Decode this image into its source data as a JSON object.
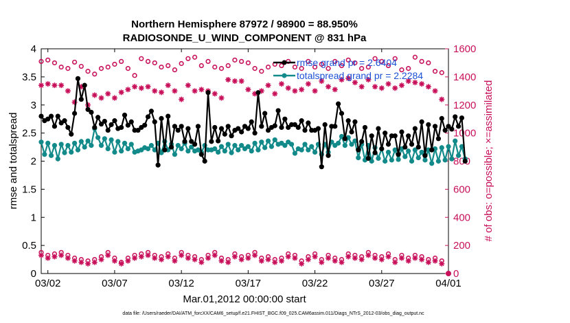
{
  "chart_data": {
    "type": "line",
    "title_line1": "Northern Hemisphere 87972 / 98900 = 88.950%",
    "title_line2": "RADIOSONDE_U_WIND_COMPONENT @ 831 hPa",
    "xlabel": "Mar.01,2012 00:00:00 start",
    "ylabel_left": "rmse and totalspread",
    "ylabel_right": "# of obs: o=possible; ×=assimilated",
    "x_range": [
      1.5,
      32.0
    ],
    "ylim_left": [
      0,
      4
    ],
    "ylim_right": [
      0,
      1600
    ],
    "x_ticks": [
      {
        "x": 2,
        "label": "03/02"
      },
      {
        "x": 7,
        "label": "03/07"
      },
      {
        "x": 12,
        "label": "03/12"
      },
      {
        "x": 17,
        "label": "03/17"
      },
      {
        "x": 22,
        "label": "03/22"
      },
      {
        "x": 27,
        "label": "03/27"
      },
      {
        "x": 32,
        "label": "04/01"
      }
    ],
    "y_ticks_left": [
      "0",
      "0.5",
      "1",
      "1.5",
      "2",
      "2.5",
      "3",
      "3.5",
      "4"
    ],
    "y_ticks_right": [
      "0",
      "200",
      "400",
      "600",
      "800",
      "1000",
      "1200",
      "1400",
      "1600"
    ],
    "legend": [
      "rmse grand pr = 2.6404",
      "totalspread grand pr = 2.2284"
    ],
    "footer": "data file: /Users/raeder/DAI/ATM_forcXX/CAM6_setup/f.e21.FHIST_BGC.f09_025.CAM6assim.011/Diags_NTrS_2012-03/obs_diag_output.nc",
    "colors": {
      "rmse": "#000000",
      "spread": "#138a8a",
      "obs": "#c8105a",
      "legend_text": "#1a4fd6"
    },
    "series": [
      {
        "name": "rmse",
        "x_start": 1.5,
        "x_step": 0.25,
        "values": [
          2.8,
          2.72,
          2.75,
          2.8,
          2.62,
          2.8,
          2.68,
          2.72,
          2.6,
          2.48,
          2.85,
          3.47,
          3.1,
          3.35,
          2.92,
          2.87,
          2.6,
          2.78,
          2.66,
          2.71,
          2.55,
          2.65,
          2.72,
          2.58,
          2.6,
          2.82,
          2.64,
          2.7,
          2.55,
          2.55,
          2.6,
          2.64,
          2.79,
          2.89,
          2.7,
          1.93,
          2.76,
          2.2,
          2.8,
          2.25,
          2.62,
          2.55,
          2.62,
          2.35,
          2.58,
          2.35,
          2.3,
          2.62,
          2.12,
          2.0,
          3.22,
          2.35,
          2.6,
          2.36,
          2.58,
          2.48,
          2.62,
          2.45,
          2.55,
          2.58,
          2.52,
          2.62,
          2.58,
          2.7,
          2.5,
          3.22,
          2.62,
          2.85,
          2.55,
          2.6,
          2.63,
          2.9,
          2.6,
          2.75,
          2.6,
          2.65,
          2.65,
          2.6,
          2.72,
          2.55,
          2.68,
          2.55,
          2.55,
          2.58,
          1.9,
          2.65,
          2.1,
          2.62,
          2.62,
          3.02,
          2.85,
          2.4,
          2.72,
          2.52,
          2.7,
          2.2,
          2.35,
          2.6,
          2.05,
          2.45,
          2.15,
          2.58,
          2.22,
          2.5,
          2.3,
          2.45,
          2.45,
          2.12,
          2.52,
          2.25,
          2.45,
          2.3,
          2.58,
          2.25,
          2.7,
          2.1,
          2.65,
          2.2,
          2.62,
          2.4,
          2.76,
          2.55,
          2.62,
          2.57,
          2.79,
          2.62,
          2.77,
          2.0
        ]
      },
      {
        "name": "totalspread",
        "x_start": 1.5,
        "x_step": 0.25,
        "values": [
          2.34,
          2.12,
          2.32,
          2.1,
          2.28,
          2.04,
          2.3,
          2.15,
          2.28,
          2.16,
          2.32,
          2.2,
          2.35,
          2.25,
          2.36,
          2.28,
          2.58,
          2.42,
          2.28,
          2.4,
          2.22,
          2.38,
          2.16,
          2.35,
          2.18,
          2.32,
          2.22,
          2.3,
          2.16,
          2.18,
          2.2,
          2.24,
          2.22,
          2.28,
          2.2,
          2.32,
          2.15,
          2.35,
          2.2,
          2.3,
          2.12,
          2.28,
          2.22,
          2.32,
          2.18,
          2.25,
          2.18,
          2.2,
          2.16,
          2.28,
          2.2,
          2.2,
          2.22,
          2.16,
          2.26,
          2.18,
          2.3,
          2.15,
          2.28,
          2.2,
          2.28,
          2.22,
          2.26,
          2.18,
          2.32,
          2.2,
          2.34,
          2.24,
          2.36,
          2.26,
          2.38,
          2.3,
          2.32,
          2.28,
          2.34,
          2.3,
          2.14,
          2.22,
          2.2,
          2.3,
          2.2,
          2.26,
          2.16,
          2.3,
          2.12,
          2.3,
          2.16,
          2.34,
          2.28,
          2.32,
          2.44,
          2.28,
          2.42,
          2.3,
          2.36,
          2.06,
          2.3,
          2.02,
          2.28,
          2.0,
          2.24,
          2.05,
          2.22,
          2.0,
          2.16,
          2.02,
          2.2,
          2.03,
          2.22,
          2.08,
          2.18,
          2.0,
          2.2,
          2.06,
          2.16,
          2.02,
          2.2,
          1.96,
          2.22,
          2.0,
          2.24,
          2.02,
          2.26,
          2.04,
          2.36,
          2.1,
          2.26,
          2.04
        ]
      },
      {
        "name": "obs_possible",
        "x_start": 1.5,
        "x_step": 0.5,
        "values": [
          1510,
          1520,
          1500,
          1470,
          1460,
          1505,
          1475,
          1440,
          1420,
          1460,
          1470,
          1490,
          1510,
          1460,
          1410,
          1530,
          1510,
          1500,
          1470,
          1480,
          1450,
          1495,
          1530,
          1540,
          1480,
          1510,
          1470,
          1460,
          1480,
          1520,
          1510,
          1500,
          1460,
          1440,
          1470,
          1490,
          1480,
          1510,
          1470,
          1460,
          1510,
          1470,
          1490,
          1460,
          1510,
          1480,
          1520,
          1500,
          1460,
          1470,
          1530,
          1510,
          1480,
          1530,
          1450,
          1460,
          1540,
          1510,
          1500,
          1440,
          1430
        ]
      },
      {
        "name": "obs_assimilated",
        "x_start": 1.5,
        "x_step": 0.5,
        "values": [
          1340,
          1350,
          1340,
          1340,
          1300,
          1220,
          1330,
          1200,
          1270,
          1250,
          1280,
          1250,
          1290,
          1310,
          1330,
          1320,
          1330,
          1300,
          1290,
          1340,
          1300,
          1240,
          1340,
          1300,
          1310,
          1300,
          1280,
          1250,
          1380,
          1370,
          1370,
          1310,
          1280,
          1300,
          1340,
          1280,
          1350,
          1320,
          1300,
          1310,
          1350,
          1300,
          1370,
          1330,
          1310,
          1380,
          1390,
          1360,
          1330,
          1380,
          1330,
          1320,
          1350,
          1320,
          1340,
          1370,
          1360,
          1350,
          1330,
          1300,
          1240
        ]
      },
      {
        "name": "obs_possible_low",
        "x_start": 1.5,
        "x_step": 0.5,
        "values": [
          150,
          130,
          140,
          150,
          130,
          110,
          100,
          90,
          100,
          120,
          150,
          110,
          80,
          110,
          130,
          140,
          150,
          130,
          120,
          140,
          110,
          150,
          130,
          120,
          100,
          130,
          150,
          110,
          100,
          140,
          120,
          130,
          150,
          110,
          120,
          100,
          110,
          140,
          130,
          90,
          120,
          140,
          100,
          130,
          110,
          100,
          140,
          130,
          120,
          150,
          130,
          120,
          140,
          100,
          130,
          110,
          130,
          120,
          100,
          110,
          90
        ]
      },
      {
        "name": "obs_assimilated_low",
        "x_start": 1.5,
        "x_step": 0.5,
        "values": [
          130,
          110,
          120,
          130,
          110,
          90,
          80,
          70,
          80,
          100,
          130,
          90,
          70,
          90,
          110,
          120,
          130,
          110,
          100,
          120,
          90,
          130,
          110,
          100,
          80,
          110,
          130,
          90,
          80,
          120,
          100,
          110,
          130,
          90,
          100,
          80,
          90,
          120,
          110,
          70,
          100,
          120,
          80,
          110,
          90,
          80,
          120,
          110,
          100,
          130,
          110,
          100,
          120,
          80,
          110,
          90,
          110,
          100,
          80,
          90,
          70
        ]
      }
    ]
  }
}
